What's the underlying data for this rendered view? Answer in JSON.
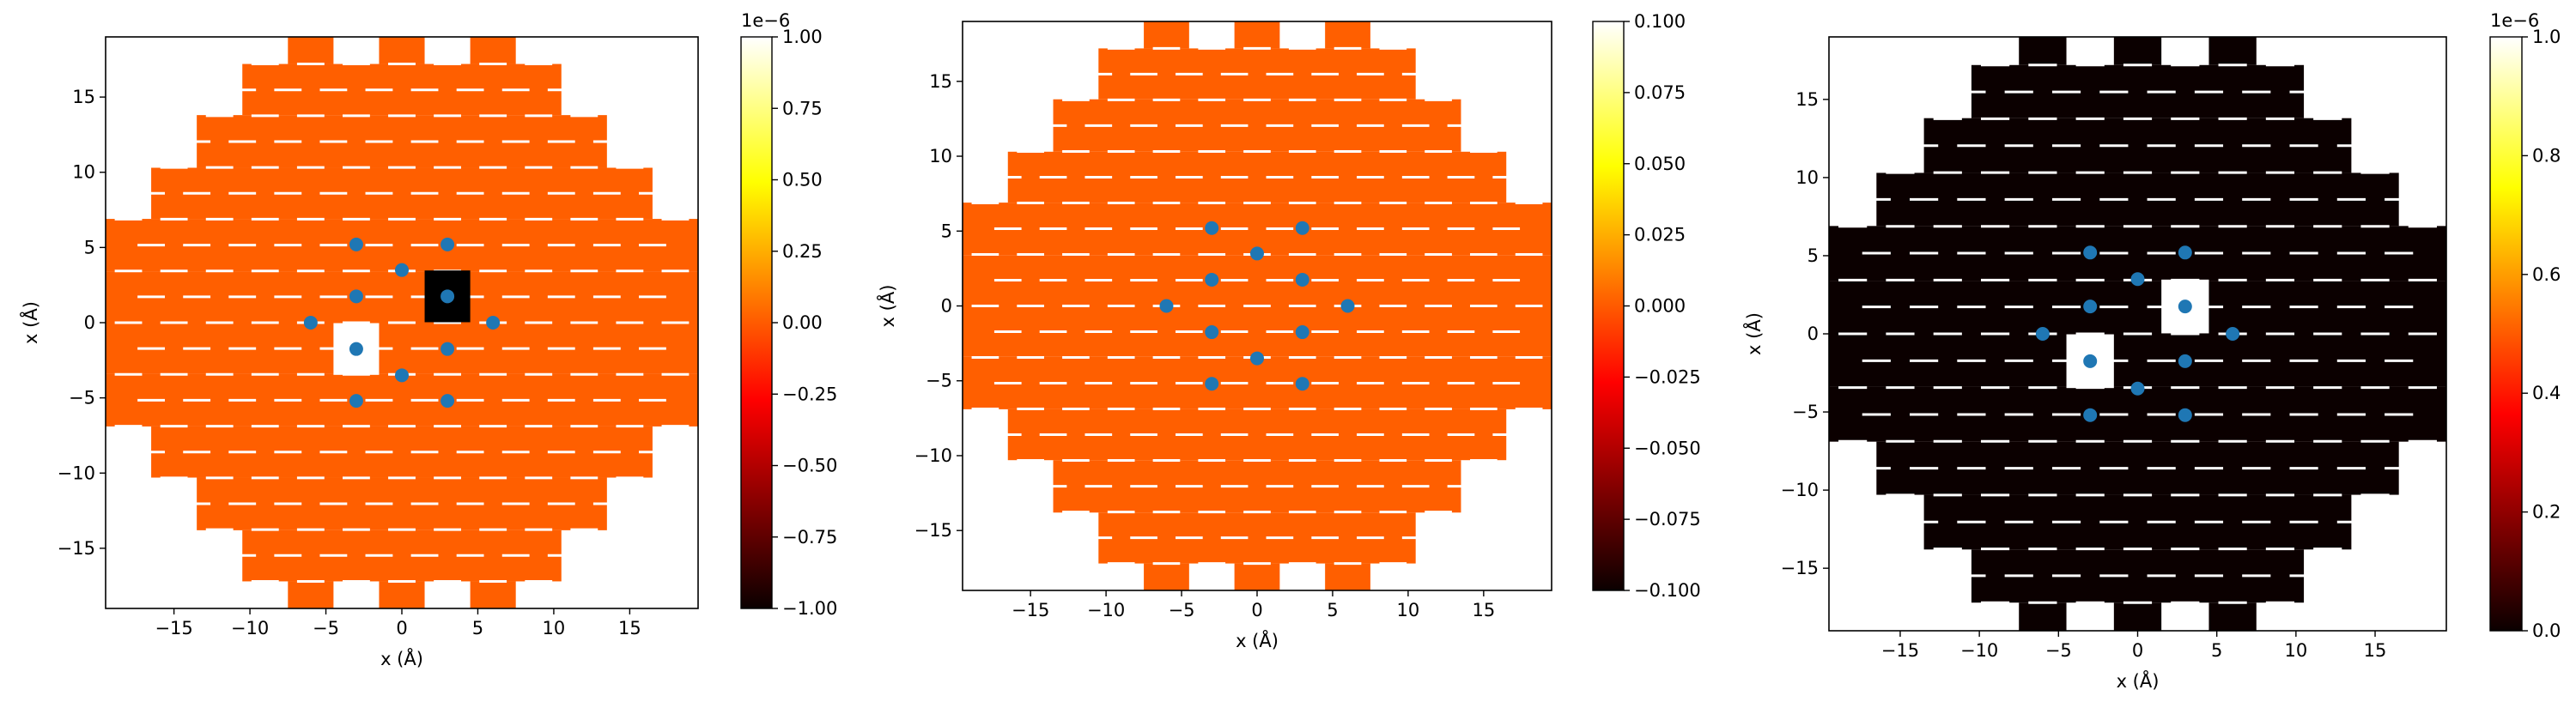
{
  "figure": {
    "panels": [
      {
        "id": "panel-1",
        "chart_data": {
          "type": "heatmap",
          "xlabel": "x (Å)",
          "ylabel": "x (Å)",
          "xlim": [
            -19.5,
            19.5
          ],
          "ylim": [
            -19.0,
            19.0
          ],
          "xticks": [
            -15,
            -10,
            -5,
            0,
            5,
            10,
            15
          ],
          "yticks": [
            -15,
            -10,
            -5,
            0,
            5,
            10,
            15
          ],
          "colormap": "hot",
          "colorbar": {
            "range": [
              -1.0,
              1.0
            ],
            "ticks": [
              "−1.00",
              "−0.75",
              "−0.50",
              "−0.25",
              "0.00",
              "0.25",
              "0.50",
              "0.75",
              "1.00"
            ],
            "tick_values": [
              -1.0,
              -0.75,
              -0.5,
              -0.25,
              0.0,
              0.25,
              0.5,
              0.75,
              1.0
            ],
            "offset_text": "1e−6"
          },
          "field_value": 0.0,
          "field_color": "#ff5f00",
          "special_cells": [
            {
              "x": 3.0,
              "y": 1.75,
              "color": "#000000"
            },
            {
              "x": -3.0,
              "y": -1.75,
              "color": "#ffffff"
            }
          ],
          "atoms": [
            {
              "x": -3.0,
              "y": 5.2
            },
            {
              "x": 3.0,
              "y": 5.2
            },
            {
              "x": 0.0,
              "y": 3.5
            },
            {
              "x": -3.0,
              "y": 1.75
            },
            {
              "x": 3.0,
              "y": 1.75
            },
            {
              "x": -6.0,
              "y": 0.0
            },
            {
              "x": 6.0,
              "y": 0.0
            },
            {
              "x": -3.0,
              "y": -1.75
            },
            {
              "x": 3.0,
              "y": -1.75
            },
            {
              "x": 0.0,
              "y": -3.5
            },
            {
              "x": -3.0,
              "y": -5.2
            },
            {
              "x": 3.0,
              "y": -5.2
            }
          ]
        }
      },
      {
        "id": "panel-2",
        "chart_data": {
          "type": "heatmap",
          "xlabel": "x (Å)",
          "ylabel": "x (Å)",
          "xlim": [
            -19.5,
            19.5
          ],
          "ylim": [
            -19.0,
            19.0
          ],
          "xticks": [
            -15,
            -10,
            -5,
            0,
            5,
            10,
            15
          ],
          "yticks": [
            -15,
            -10,
            -5,
            0,
            5,
            10,
            15
          ],
          "colormap": "hot",
          "colorbar": {
            "range": [
              -0.1,
              0.1
            ],
            "ticks": [
              "−0.100",
              "−0.075",
              "−0.050",
              "−0.025",
              "0.000",
              "0.025",
              "0.050",
              "0.075",
              "0.100"
            ],
            "tick_values": [
              -0.1,
              -0.075,
              -0.05,
              -0.025,
              0.0,
              0.025,
              0.05,
              0.075,
              0.1
            ],
            "offset_text": ""
          },
          "field_value": 0.0,
          "field_color": "#ff5f00",
          "special_cells": [],
          "atoms": [
            {
              "x": -3.0,
              "y": 5.2
            },
            {
              "x": 3.0,
              "y": 5.2
            },
            {
              "x": 0.0,
              "y": 3.5
            },
            {
              "x": -3.0,
              "y": 1.75
            },
            {
              "x": 3.0,
              "y": 1.75
            },
            {
              "x": -6.0,
              "y": 0.0
            },
            {
              "x": 6.0,
              "y": 0.0
            },
            {
              "x": -3.0,
              "y": -1.75
            },
            {
              "x": 3.0,
              "y": -1.75
            },
            {
              "x": 0.0,
              "y": -3.5
            },
            {
              "x": -3.0,
              "y": -5.2
            },
            {
              "x": 3.0,
              "y": -5.2
            }
          ]
        }
      },
      {
        "id": "panel-3",
        "chart_data": {
          "type": "heatmap",
          "xlabel": "x (Å)",
          "ylabel": "x (Å)",
          "xlim": [
            -19.5,
            19.5
          ],
          "ylim": [
            -19.0,
            19.0
          ],
          "xticks": [
            -15,
            -10,
            -5,
            0,
            5,
            10,
            15
          ],
          "yticks": [
            -15,
            -10,
            -5,
            0,
            5,
            10,
            15
          ],
          "colormap": "hot",
          "colorbar": {
            "range": [
              0.0,
              1.0
            ],
            "ticks": [
              "0.0",
              "0.2",
              "0.4",
              "0.6",
              "0.8",
              "1.0"
            ],
            "tick_values": [
              0.0,
              0.2,
              0.4,
              0.6,
              0.8,
              1.0
            ],
            "offset_text": "1e−6"
          },
          "field_value": 0.0,
          "field_color": "#0b0000",
          "special_cells": [
            {
              "x": 3.0,
              "y": 1.75,
              "color": "#ffffff"
            },
            {
              "x": -3.0,
              "y": -1.75,
              "color": "#ffffff"
            }
          ],
          "atoms": [
            {
              "x": -3.0,
              "y": 5.2
            },
            {
              "x": 3.0,
              "y": 5.2
            },
            {
              "x": 0.0,
              "y": 3.5
            },
            {
              "x": -3.0,
              "y": 1.75
            },
            {
              "x": 3.0,
              "y": 1.75
            },
            {
              "x": -6.0,
              "y": 0.0
            },
            {
              "x": 6.0,
              "y": 0.0
            },
            {
              "x": -3.0,
              "y": -1.75
            },
            {
              "x": 3.0,
              "y": -1.75
            },
            {
              "x": 0.0,
              "y": -3.5
            },
            {
              "x": -3.0,
              "y": -5.2
            },
            {
              "x": 3.0,
              "y": -5.2
            }
          ]
        }
      }
    ],
    "colors": {
      "atom": "#1f77b4",
      "axis": "#000000",
      "gap": "#ffffff"
    }
  }
}
